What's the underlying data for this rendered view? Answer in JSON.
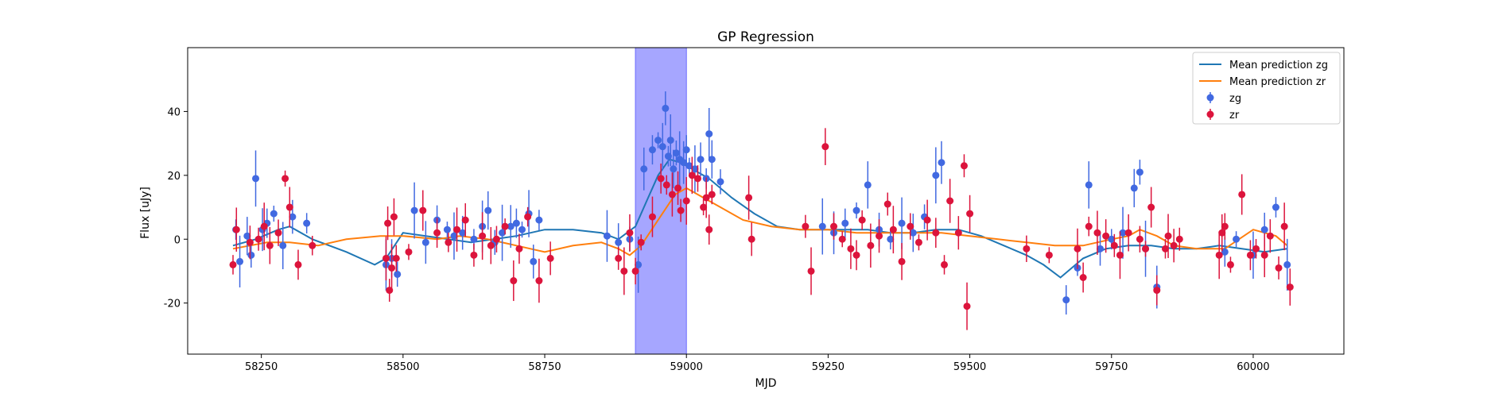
{
  "chart_data": {
    "type": "scatter",
    "title": "GP Regression",
    "xlabel": "MJD",
    "ylabel": "Flux [uJy]",
    "xlim": [
      58120,
      60160
    ],
    "ylim": [
      -36,
      60
    ],
    "xticks": [
      58250,
      58500,
      58750,
      59000,
      59250,
      59500,
      59750,
      60000
    ],
    "yticks": [
      -20,
      0,
      20,
      40
    ],
    "grid": false,
    "legend_position": "top-right",
    "highlight_span": {
      "x_start": 58910,
      "x_end": 59000,
      "color": "#a6a6ff"
    },
    "series": [
      {
        "name": "Mean prediction zg",
        "kind": "line",
        "color": "#1f77b4",
        "x": [
          58200,
          58240,
          58280,
          58300,
          58340,
          58400,
          58450,
          58470,
          58500,
          58540,
          58580,
          58620,
          58660,
          58700,
          58750,
          58800,
          58850,
          58880,
          58910,
          58930,
          58950,
          58970,
          58990,
          59010,
          59040,
          59080,
          59120,
          59160,
          59200,
          59240,
          59280,
          59320,
          59360,
          59400,
          59440,
          59480,
          59520,
          59560,
          59600,
          59630,
          59660,
          59680,
          59700,
          59740,
          59780,
          59820,
          59860,
          59900,
          59940,
          59980,
          60020,
          60060
        ],
        "y": [
          -2,
          0,
          3,
          4,
          0,
          -4,
          -8,
          -6,
          2,
          1,
          0,
          -1,
          0,
          1,
          3,
          3,
          2,
          0,
          4,
          12,
          20,
          25,
          24,
          22,
          19,
          13,
          8,
          4,
          3,
          3,
          3,
          3,
          2,
          2,
          3,
          3,
          1,
          -2,
          -5,
          -8,
          -12,
          -9,
          -6,
          -3,
          -2,
          -2,
          -3,
          -3,
          -2,
          -3,
          -4,
          -3
        ]
      },
      {
        "name": "Mean prediction zr",
        "kind": "line",
        "color": "#ff7f0e",
        "x": [
          58200,
          58260,
          58300,
          58350,
          58400,
          58460,
          58500,
          58560,
          58600,
          58650,
          58700,
          58750,
          58800,
          58850,
          58880,
          58900,
          58920,
          58950,
          58980,
          59000,
          59030,
          59060,
          59100,
          59150,
          59200,
          59250,
          59300,
          59350,
          59400,
          59450,
          59500,
          59550,
          59600,
          59650,
          59700,
          59750,
          59780,
          59800,
          59830,
          59860,
          59900,
          59950,
          60000,
          60040,
          60060
        ],
        "y": [
          -3,
          -1,
          -1,
          -2,
          0,
          1,
          1,
          0,
          1,
          0,
          -2,
          -4,
          -2,
          -1,
          -3,
          -5,
          -2,
          6,
          14,
          16,
          13,
          10,
          6,
          4,
          3,
          3,
          2,
          2,
          2,
          2,
          1,
          0,
          -1,
          -2,
          -2,
          0,
          1,
          3,
          1,
          -2,
          -3,
          -3,
          3,
          1,
          -2
        ]
      },
      {
        "name": "zg",
        "kind": "errorbar",
        "color": "#4169e1",
        "x": [
          58205,
          58212,
          58225,
          58232,
          58240,
          58252,
          58260,
          58272,
          58288,
          58305,
          58330,
          58470,
          58480,
          58490,
          58520,
          58540,
          58560,
          58578,
          58590,
          58605,
          58625,
          58640,
          58650,
          58662,
          58675,
          58690,
          58700,
          58710,
          58722,
          58730,
          58740,
          58860,
          58880,
          58900,
          58915,
          58925,
          58940,
          58950,
          58958,
          58963,
          58968,
          58972,
          58977,
          58982,
          58988,
          58995,
          59000,
          59005,
          59015,
          59025,
          59035,
          59040,
          59045,
          59060,
          59240,
          59260,
          59280,
          59300,
          59320,
          59340,
          59360,
          59380,
          59400,
          59420,
          59440,
          59450,
          59670,
          59690,
          59710,
          59730,
          59750,
          59770,
          59790,
          59800,
          59810,
          59830,
          59950,
          59970,
          60000,
          60020,
          60040,
          60060
        ],
        "y": [
          3,
          -7,
          1,
          -5,
          19,
          3,
          5,
          8,
          -2,
          7,
          5,
          -8,
          -6,
          -11,
          9,
          -1,
          6,
          3,
          1,
          2,
          0,
          4,
          9,
          -1,
          2,
          4,
          5,
          3,
          8,
          -7,
          6,
          1,
          -1,
          0,
          -8,
          22,
          28,
          31,
          29,
          41,
          26,
          31,
          22,
          27,
          25,
          24,
          28,
          23,
          22,
          25,
          19,
          33,
          25,
          18,
          4,
          2,
          5,
          9,
          17,
          3,
          0,
          5,
          2,
          7,
          20,
          24,
          -19,
          -9,
          17,
          -3,
          0,
          2,
          16,
          21,
          -3,
          -15,
          -4,
          0,
          -5,
          3,
          10,
          -8
        ]
      },
      {
        "name": "zr",
        "kind": "errorbar",
        "color": "#dc143c",
        "x": [
          58200,
          58206,
          58230,
          58245,
          58255,
          58265,
          58280,
          58292,
          58300,
          58315,
          58340,
          58470,
          58473,
          58476,
          58480,
          58484,
          58488,
          58510,
          58535,
          58560,
          58580,
          58595,
          58610,
          58625,
          58640,
          58655,
          58665,
          58680,
          58695,
          58705,
          58720,
          58740,
          58760,
          58880,
          58890,
          58900,
          58910,
          58920,
          58940,
          58955,
          58965,
          58975,
          58985,
          58990,
          59000,
          59010,
          59020,
          59030,
          59035,
          59040,
          59045,
          59110,
          59115,
          59210,
          59220,
          59245,
          59260,
          59275,
          59290,
          59300,
          59310,
          59325,
          59340,
          59355,
          59365,
          59380,
          59395,
          59410,
          59425,
          59440,
          59455,
          59465,
          59480,
          59490,
          59495,
          59500,
          59600,
          59640,
          59690,
          59700,
          59710,
          59725,
          59740,
          59755,
          59765,
          59780,
          59800,
          59810,
          59820,
          59830,
          59845,
          59850,
          59860,
          59870,
          59940,
          59945,
          59950,
          59960,
          59980,
          59995,
          60005,
          60020,
          60030,
          60045,
          60055,
          60065
        ],
        "y": [
          -8,
          3,
          -1,
          0,
          4,
          -2,
          2,
          19,
          10,
          -8,
          -2,
          -6,
          5,
          -16,
          -9,
          7,
          -6,
          -4,
          9,
          2,
          -1,
          3,
          6,
          -5,
          1,
          -2,
          0,
          4,
          -13,
          -3,
          7,
          -13,
          -6,
          -6,
          -10,
          2,
          -10,
          -1,
          7,
          19,
          17,
          14,
          16,
          9,
          12,
          20,
          19,
          10,
          13,
          3,
          14,
          13,
          0,
          4,
          -10,
          29,
          4,
          0,
          -3,
          -5,
          6,
          -2,
          1,
          11,
          3,
          -7,
          4,
          -1,
          6,
          2,
          -8,
          12,
          2,
          23,
          -21,
          8,
          -3,
          -5,
          -3,
          -12,
          4,
          2,
          1,
          -2,
          -5,
          2,
          0,
          -3,
          10,
          -16,
          -3,
          1,
          -2,
          0,
          -5,
          2,
          4,
          -8,
          14,
          -5,
          -3,
          -5,
          1,
          -9,
          4,
          -15
        ]
      }
    ]
  }
}
